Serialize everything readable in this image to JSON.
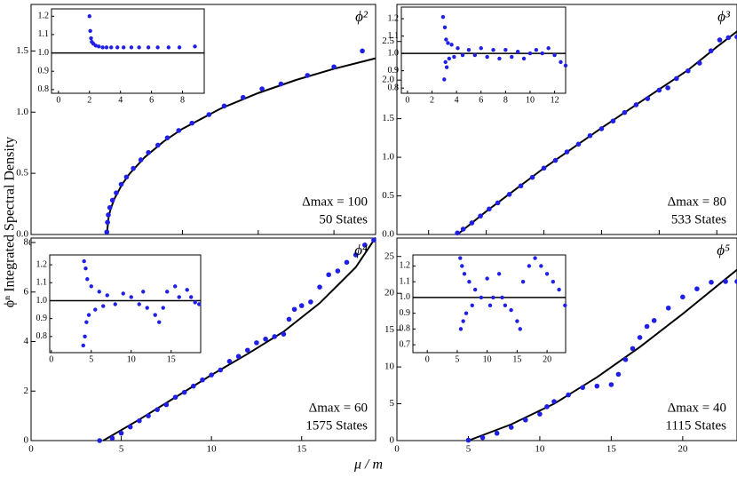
{
  "xlabel": "μ / m",
  "ylabel": "ϕⁿ Integrated Spectral Density",
  "chart_data": [
    {
      "type": "scatter",
      "title": "ϕ²",
      "annotations": [
        "Δmax = 100",
        "50 States"
      ],
      "xlim": [
        0,
        9.1
      ],
      "ylim": [
        0,
        1.88
      ],
      "xticks": [
        0,
        2,
        4,
        6,
        8
      ],
      "yticks": [
        {
          "value": 0,
          "label": "0.0"
        },
        0.5,
        {
          "value": 1,
          "label": "1.0"
        },
        1.5
      ],
      "series": [
        {
          "type": "line",
          "color": "#000000",
          "x": [
            2,
            2.05,
            2.1,
            2.2,
            2.4,
            2.6,
            3,
            3.5,
            4,
            5,
            6,
            7,
            8,
            9.1
          ],
          "values": [
            0,
            0.146,
            0.207,
            0.291,
            0.408,
            0.496,
            0.631,
            0.76,
            0.864,
            1.028,
            1.156,
            1.263,
            1.354,
            1.44
          ]
        },
        {
          "type": "scatter",
          "color": "#1f1fe6",
          "x": [
            2.0,
            2.02,
            2.04,
            2.08,
            2.15,
            2.25,
            2.38,
            2.52,
            2.7,
            2.9,
            3.1,
            3.35,
            3.6,
            3.9,
            4.25,
            4.7,
            5.1,
            5.6,
            6.1,
            6.6,
            7.3,
            8.0,
            8.75
          ],
          "values": [
            0.02,
            0.1,
            0.16,
            0.22,
            0.28,
            0.34,
            0.41,
            0.47,
            0.54,
            0.61,
            0.67,
            0.73,
            0.79,
            0.85,
            0.91,
            0.98,
            1.05,
            1.12,
            1.19,
            1.23,
            1.3,
            1.37,
            1.5
          ]
        }
      ],
      "inset": {
        "type": "scatter",
        "xlim": [
          -0.45,
          9.4
        ],
        "ylim": [
          0.78,
          1.24
        ],
        "xticks": [
          0,
          2,
          4,
          6,
          8
        ],
        "yticks": [
          0.8,
          0.9,
          {
            "value": 1,
            "label": "1.0"
          },
          1.1,
          1.2
        ],
        "hline": 1,
        "hline_color": "#000000",
        "series": [
          {
            "color": "#1f1fe6",
            "x": [
              2.0,
              2.05,
              2.1,
              2.15,
              2.25,
              2.4,
              2.6,
              2.85,
              3.1,
              3.4,
              3.8,
              4.2,
              4.7,
              5.2,
              5.8,
              6.4,
              7.1,
              7.8,
              8.8
            ],
            "values": [
              1.2,
              1.12,
              1.08,
              1.06,
              1.05,
              1.04,
              1.035,
              1.03,
              1.03,
              1.03,
              1.03,
              1.03,
              1.03,
              1.03,
              1.03,
              1.03,
              1.03,
              1.03,
              1.035
            ]
          }
        ]
      }
    },
    {
      "type": "scatter",
      "title": "ϕ³",
      "annotations": [
        "Δmax = 80",
        "533 States"
      ],
      "xlim": [
        0.9,
        12.7
      ],
      "ylim": [
        0,
        2.98
      ],
      "xticks": [
        2,
        4,
        6,
        8,
        10,
        12
      ],
      "yticks": [
        {
          "value": 0,
          "label": "0.0"
        },
        0.5,
        {
          "value": 1,
          "label": "1.0"
        },
        1.5,
        {
          "value": 2,
          "label": "2.0"
        },
        2.5
      ],
      "series": [
        {
          "type": "line",
          "color": "#000000",
          "x": [
            3,
            4,
            5,
            6,
            7,
            8,
            9,
            10,
            11,
            12,
            12.7
          ],
          "values": [
            0,
            0.3,
            0.58,
            0.86,
            1.12,
            1.38,
            1.63,
            1.88,
            2.13,
            2.43,
            2.63
          ]
        },
        {
          "type": "scatter",
          "color": "#1f1fe6",
          "x": [
            3.0,
            3.2,
            3.5,
            3.8,
            4.1,
            4.4,
            4.8,
            5.2,
            5.6,
            6.0,
            6.4,
            6.8,
            7.2,
            7.6,
            8.0,
            8.4,
            8.8,
            9.2,
            9.6,
            10.0,
            10.3,
            10.6,
            11.0,
            11.4,
            11.8,
            12.1,
            12.4,
            12.7
          ],
          "values": [
            0.02,
            0.07,
            0.15,
            0.24,
            0.33,
            0.41,
            0.52,
            0.63,
            0.74,
            0.86,
            0.96,
            1.07,
            1.17,
            1.28,
            1.37,
            1.47,
            1.58,
            1.68,
            1.76,
            1.87,
            1.9,
            2.02,
            2.12,
            2.22,
            2.38,
            2.52,
            2.55,
            2.56
          ]
        }
      ],
      "inset": {
        "type": "scatter",
        "xlim": [
          -0.5,
          12.9
        ],
        "ylim": [
          0.77,
          1.267
        ],
        "xticks": [
          0,
          2,
          4,
          6,
          8,
          10,
          12
        ],
        "yticks": [
          0.8,
          0.9,
          {
            "value": 1,
            "label": "1.0"
          },
          1.1,
          1.2
        ],
        "hline": 1,
        "hline_color": "#000000",
        "series": [
          {
            "color": "#1f1fe6",
            "x": [
              2.9,
              3.0,
              3.05,
              3.1,
              3.15,
              3.2,
              3.3,
              3.4,
              3.6,
              3.8,
              4.1,
              4.5,
              5,
              5.5,
              6,
              6.5,
              7,
              7.5,
              8,
              8.5,
              9,
              9.5,
              10,
              10.5,
              11,
              11.5,
              12,
              12.5,
              12.9
            ],
            "values": [
              1.21,
              0.85,
              1.15,
              0.95,
              1.08,
              0.92,
              1.06,
              0.97,
              1.05,
              0.98,
              1.03,
              0.99,
              1.02,
              0.99,
              1.03,
              0.98,
              1.02,
              0.97,
              1.02,
              0.98,
              1.01,
              0.97,
              1.0,
              1.02,
              1.0,
              1.03,
              0.99,
              0.95,
              0.93
            ]
          }
        ]
      }
    },
    {
      "type": "scatter",
      "title": "ϕ⁴",
      "annotations": [
        "Δmax = 60",
        "1575 States"
      ],
      "xlim": [
        0,
        19.1
      ],
      "ylim": [
        0,
        8.18
      ],
      "xticks": [
        0,
        5,
        10,
        15
      ],
      "yticks": [
        0,
        2,
        4,
        6,
        8
      ],
      "series": [
        {
          "type": "line",
          "color": "#000000",
          "x": [
            4,
            6,
            8,
            10,
            12,
            14,
            16,
            18,
            19.1
          ],
          "values": [
            0,
            0.85,
            1.75,
            2.65,
            3.5,
            4.4,
            5.55,
            7.0,
            8.2
          ]
        },
        {
          "type": "scatter",
          "color": "#1f1fe6",
          "x": [
            3.8,
            4.5,
            5,
            5.5,
            6,
            6.5,
            7,
            7.5,
            8,
            8.5,
            9,
            9.5,
            10,
            10.5,
            11,
            11.5,
            12,
            12.5,
            13,
            13.5,
            14,
            14.3,
            14.6,
            15,
            15.5,
            16,
            16.5,
            17,
            17.5,
            18,
            18.5,
            19
          ],
          "values": [
            0,
            0.1,
            0.3,
            0.55,
            0.8,
            1.0,
            1.25,
            1.45,
            1.75,
            1.95,
            2.2,
            2.45,
            2.65,
            2.85,
            3.2,
            3.4,
            3.65,
            3.95,
            4.1,
            4.2,
            4.3,
            4.9,
            5.3,
            5.45,
            5.6,
            6.2,
            6.7,
            6.85,
            7.2,
            7.5,
            7.9,
            8.1
          ]
        }
      ],
      "inset": {
        "type": "scatter",
        "xlim": [
          -0.2,
          18.7
        ],
        "ylim": [
          0.71,
          1.255
        ],
        "xticks": [
          0,
          5,
          10,
          15
        ],
        "yticks": [
          0.8,
          0.9,
          {
            "value": 1,
            "label": "1.0"
          },
          1.1,
          1.2
        ],
        "hline": 1,
        "hline_color": "#000000",
        "series": [
          {
            "color": "#1f1fe6",
            "x": [
              4.0,
              4.1,
              4.2,
              4.3,
              4.4,
              4.5,
              4.7,
              5,
              5.5,
              6,
              6.5,
              7,
              8,
              9,
              10,
              11,
              11.5,
              12,
              13,
              13.5,
              14,
              14.5,
              15.5,
              16,
              17,
              17.5,
              18,
              18.5
            ],
            "values": [
              0.75,
              1.22,
              0.8,
              1.18,
              0.88,
              1.12,
              0.92,
              1.08,
              0.95,
              1.05,
              0.97,
              1.03,
              0.98,
              1.04,
              1.02,
              0.98,
              1.05,
              0.96,
              0.92,
              0.88,
              0.96,
              1.05,
              1.08,
              1.02,
              1.06,
              1.02,
              0.99,
              0.98
            ]
          }
        ]
      }
    },
    {
      "type": "scatter",
      "title": "ϕ⁵",
      "annotations": [
        "Δmax = 40",
        "1115 States"
      ],
      "xlim": [
        0,
        23.8
      ],
      "ylim": [
        0,
        27.5
      ],
      "xticks": [
        0,
        5,
        10,
        15,
        20
      ],
      "yticks": [
        0,
        5,
        10,
        15,
        20,
        25
      ],
      "series": [
        {
          "type": "line",
          "color": "#000000",
          "x": [
            5,
            8,
            11,
            14,
            17,
            20,
            23.8
          ],
          "values": [
            0,
            2.2,
            5,
            8.6,
            12.7,
            17.2,
            23.2
          ]
        },
        {
          "type": "scatter",
          "color": "#1f1fe6",
          "x": [
            5,
            6,
            7,
            8,
            9,
            10,
            10.5,
            11,
            12,
            13,
            14,
            15,
            15.5,
            16,
            16.5,
            17,
            17.5,
            18,
            19,
            20,
            21,
            22,
            23,
            23.8
          ],
          "values": [
            0.05,
            0.4,
            1.0,
            1.8,
            2.8,
            3.6,
            4.6,
            5.3,
            6.2,
            7.2,
            7.4,
            7.6,
            9,
            11,
            12.5,
            14,
            15.5,
            16.3,
            18,
            19.5,
            20.6,
            21.5,
            21.6,
            21.6
          ]
        }
      ],
      "inset": {
        "type": "scatter",
        "xlim": [
          -2.4,
          23.1
        ],
        "ylim": [
          0.65,
          1.27
        ],
        "xticks": [
          0,
          5,
          10,
          15,
          20
        ],
        "yticks": [
          0.7,
          0.8,
          0.9,
          {
            "value": 1,
            "label": "1.0"
          },
          1.1,
          1.2
        ],
        "hline": 1,
        "hline_color": "#000000",
        "series": [
          {
            "color": "#1f1fe6",
            "x": [
              5.5,
              5.6,
              5.8,
              6,
              6.2,
              6.5,
              7,
              7.5,
              8,
              9,
              10,
              10.5,
              11,
              12,
              12.5,
              13,
              14,
              15,
              15.5,
              16,
              17,
              18,
              19,
              20,
              21,
              22,
              23
            ],
            "values": [
              1.25,
              0.8,
              1.2,
              0.85,
              1.15,
              0.9,
              1.1,
              0.95,
              1.05,
              1.0,
              1.12,
              0.95,
              1.0,
              1.15,
              1.0,
              0.95,
              0.92,
              0.85,
              0.8,
              1.1,
              1.2,
              1.25,
              1.2,
              1.15,
              1.1,
              1.05,
              0.95
            ]
          }
        ]
      }
    }
  ]
}
